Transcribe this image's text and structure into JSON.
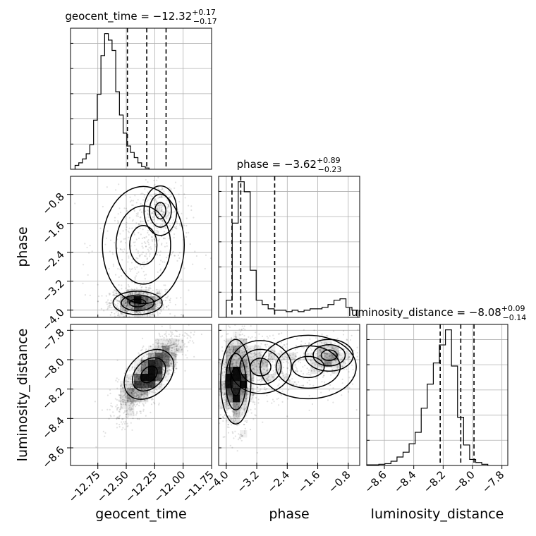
{
  "chart_data": [
    {
      "type": "histogram",
      "panel": "geocent_time",
      "title": "geocent_time = −12.32",
      "title_sup": "+0.17",
      "title_sub": "−0.17",
      "quantiles": [
        -12.49,
        -12.32,
        -12.15
      ],
      "bin_start": -12.95,
      "bin_width": 0.0325,
      "counts": [
        3,
        5,
        8,
        12,
        19,
        38,
        58,
        88,
        105,
        100,
        92,
        60,
        42,
        28,
        18,
        13,
        9,
        5,
        2,
        1
      ],
      "xlim": [
        -12.99,
        -11.75
      ]
    },
    {
      "type": "histogram",
      "panel": "phase",
      "title": "phase = −3.62",
      "title_sup": "+0.89",
      "title_sub": "−0.23",
      "quantiles": [
        -3.85,
        -3.62,
        -2.73
      ],
      "bin_start": -4.0,
      "bin_width": 0.157,
      "counts": [
        12,
        66,
        95,
        88,
        33,
        12,
        9,
        6,
        5,
        5,
        4,
        5,
        4,
        5,
        6,
        6,
        7,
        9,
        12,
        13,
        7,
        5
      ],
      "xlim": [
        -4.2,
        -0.5
      ]
    },
    {
      "type": "histogram",
      "panel": "luminosity_distance",
      "title": "luminosity_distance = −8.08",
      "title_sup": "+0.09",
      "title_sub": "−0.14",
      "quantiles": [
        -8.22,
        -8.08,
        -7.99
      ],
      "bin_start": -8.72,
      "bin_width": 0.0412,
      "counts": [
        1,
        1,
        2,
        3,
        7,
        14,
        22,
        36,
        55,
        95,
        135,
        170,
        200,
        225,
        165,
        80,
        34,
        10,
        5,
        2
      ],
      "xlim": [
        -8.72,
        -7.76
      ]
    },
    {
      "type": "scatter",
      "panel": "geocent_time-phase",
      "xlim": [
        -12.99,
        -11.75
      ],
      "ylim": [
        -4.2,
        -0.3
      ],
      "clusters": [
        {
          "x": -12.4,
          "y": -3.8,
          "sx": 0.12,
          "sy": 0.18,
          "n": 900
        },
        {
          "x": -12.2,
          "y": -1.25,
          "sx": 0.08,
          "sy": 0.38,
          "n": 240
        },
        {
          "x": -12.35,
          "y": -2.2,
          "sx": 0.2,
          "sy": 0.9,
          "n": 360
        }
      ]
    },
    {
      "type": "scatter",
      "panel": "geocent_time-luminosity_distance",
      "xlim": [
        -12.99,
        -11.75
      ],
      "ylim": [
        -8.72,
        -7.76
      ],
      "clusters": [
        {
          "x": -12.3,
          "y": -8.1,
          "sx": 0.14,
          "sy": 0.14,
          "n": 1500,
          "corr": 0.78
        }
      ]
    },
    {
      "type": "scatter",
      "panel": "phase-luminosity_distance",
      "xlim": [
        -4.2,
        -0.5
      ],
      "ylim": [
        -8.72,
        -7.76
      ],
      "clusters": [
        {
          "x": -3.75,
          "y": -8.15,
          "sx": 0.22,
          "sy": 0.16,
          "n": 900
        },
        {
          "x": -3.1,
          "y": -8.05,
          "sx": 0.45,
          "sy": 0.1,
          "n": 350
        },
        {
          "x": -1.3,
          "y": -7.97,
          "sx": 0.35,
          "sy": 0.06,
          "n": 260
        },
        {
          "x": -1.85,
          "y": -8.05,
          "sx": 0.7,
          "sy": 0.12,
          "n": 200
        }
      ]
    }
  ],
  "axes": {
    "geocent_time": {
      "label": "geocent_time",
      "ticks": [
        -12.75,
        -12.5,
        -12.25,
        -12.0,
        -11.75
      ],
      "tick_labels": [
        "−12.75",
        "−12.50",
        "−12.25",
        "−12.00",
        "−11.75"
      ]
    },
    "phase_x": {
      "label": "phase",
      "ticks": [
        -4.0,
        -3.2,
        -2.4,
        -1.6,
        -0.8
      ],
      "tick_labels": [
        "−4.0",
        "−3.2",
        "−2.4",
        "−1.6",
        "−0.8"
      ]
    },
    "phase_y": {
      "label": "phase",
      "ticks": [
        -0.8,
        -1.6,
        -2.4,
        -3.2,
        -4.0
      ],
      "tick_labels": [
        "−0.8",
        "−1.6",
        "−2.4",
        "−3.2",
        "−4.0"
      ]
    },
    "luminosity_distance_x": {
      "label": "luminosity_distance",
      "ticks": [
        -8.6,
        -8.4,
        -8.2,
        -8.0,
        -7.8
      ],
      "tick_labels": [
        "−8.6",
        "−8.4",
        "−8.2",
        "−8.0",
        "−7.8"
      ]
    },
    "luminosity_distance_y": {
      "label": "luminosity_distance",
      "ticks": [
        -7.8,
        -8.0,
        -8.2,
        -8.4,
        -8.6
      ],
      "tick_labels": [
        "−7.8",
        "−8.0",
        "−8.2",
        "−8.4",
        "−8.6"
      ]
    }
  },
  "colors": {
    "line": "#000000",
    "grid": "#b0b0b0",
    "point": "#000000"
  }
}
